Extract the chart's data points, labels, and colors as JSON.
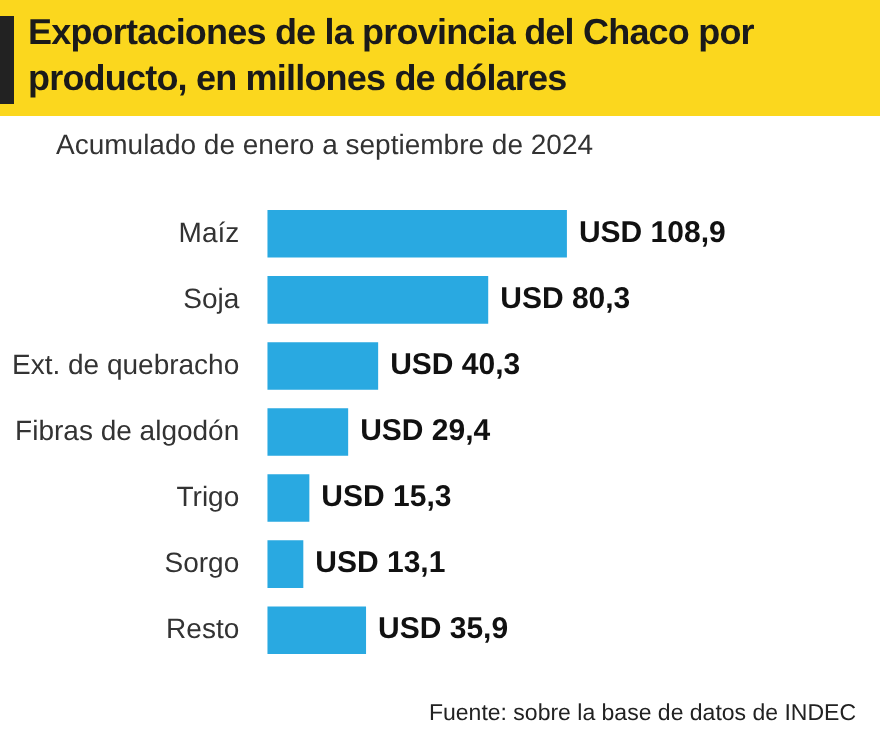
{
  "chart_data": {
    "type": "bar",
    "orientation": "horizontal",
    "title": "Exportaciones de la provincia del Chaco por producto, en millones de dólares",
    "subtitle": "Acumulado de enero a septiembre de 2024",
    "categories": [
      "Maíz",
      "Soja",
      "Ext. de quebracho",
      "Fibras de algodón",
      "Trigo",
      "Sorgo",
      "Resto"
    ],
    "values": [
      108.9,
      80.3,
      40.3,
      29.4,
      15.3,
      13.1,
      35.9
    ],
    "value_labels": [
      "USD 108,9",
      "USD 80,3",
      "USD 40,3",
      "USD 29,4",
      "USD 15,3",
      "USD 13,1",
      "USD 35,9"
    ],
    "color": "#29a9e1",
    "grid": false,
    "legend": false,
    "annotations": [
      "Fuente: sobre la base de datos de INDEC"
    ]
  }
}
